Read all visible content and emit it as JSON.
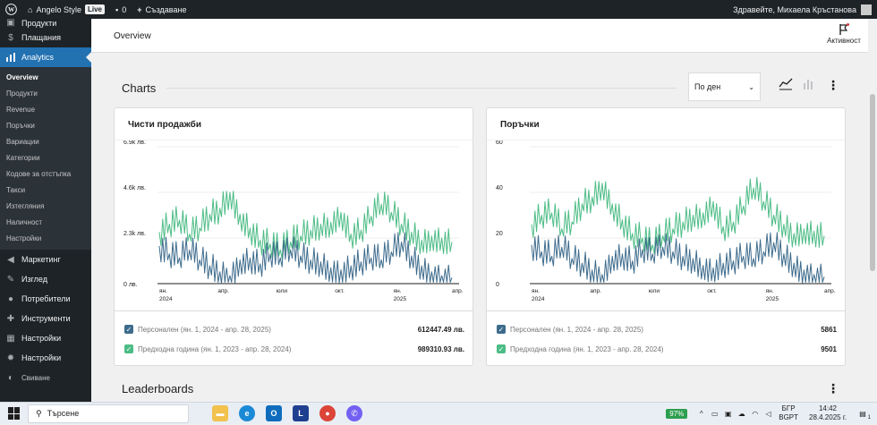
{
  "admin_bar": {
    "site_name": "Angelo Style",
    "live_badge": "Live",
    "comments_count": "0",
    "new_label": "Създаване",
    "greeting": "Здравейте, Михаела Кръстанова"
  },
  "sidebar": {
    "items_top": [
      {
        "label": "Продукти",
        "icon": "box-icon"
      },
      {
        "label": "Плащания",
        "icon": "dollar-icon"
      },
      {
        "label": "Analytics",
        "icon": "bar-chart-icon"
      }
    ],
    "submenu": [
      "Overview",
      "Продукти",
      "Revenue",
      "Поръчки",
      "Вариации",
      "Категории",
      "Кодове за отстъпка",
      "Такси",
      "Изтегляния",
      "Наличност",
      "Настройки"
    ],
    "items_bottom": [
      {
        "label": "Маркетинг",
        "icon": "megaphone-icon"
      },
      {
        "label": "Изглед",
        "icon": "brush-icon"
      },
      {
        "label": "Потребители",
        "icon": "user-icon"
      },
      {
        "label": "Инструменти",
        "icon": "wrench-icon"
      },
      {
        "label": "Настройки",
        "icon": "settings-icon"
      },
      {
        "label": "Настройки",
        "icon": "gear-icon"
      },
      {
        "label": "Свиване",
        "icon": "collapse-icon"
      }
    ]
  },
  "header": {
    "title": "Overview",
    "activity_label": "Активност"
  },
  "charts_section": {
    "title": "Charts",
    "interval_value": "По ден"
  },
  "leaderboards_title": "Leaderboards",
  "colors": {
    "current_series": "#3d6b8c",
    "previous_series": "#4cbc85",
    "accent": "#2271b1"
  },
  "cards": [
    {
      "title": "Чисти продажби",
      "legend": [
        {
          "label": "Персонален (ян. 1, 2024 - апр. 28, 2025)",
          "value": "612447.49 лв."
        },
        {
          "label": "Предходна година (ян. 1, 2023 - апр. 28, 2024)",
          "value": "989310.93 лв."
        }
      ],
      "chart_data": {
        "type": "line",
        "y_tick_labels": [
          "0 лв.",
          "2.3k лв.",
          "4.6k лв.",
          "6.9k лв."
        ],
        "y_ticks": [
          0,
          2300,
          4600,
          6900
        ],
        "x_tick_labels": [
          "ян.",
          "апр.",
          "юли",
          "окт.",
          "ян.",
          "апр."
        ],
        "x_year_labels": [
          {
            "at": 0,
            "label": "2024"
          },
          {
            "at": 4,
            "label": "2025"
          }
        ],
        "ylim": [
          0,
          6900
        ],
        "grid": true,
        "series": [
          {
            "values": [
              1900,
              1500,
              1300,
              1700,
              1200,
              900,
              600,
              400,
              1200,
              1300,
              1000,
              1500,
              1300,
              1700,
              1400,
              1200,
              1100,
              800,
              700,
              900,
              1100,
              1300,
              1200,
              1600,
              2100,
              1400,
              900,
              600,
              400,
              300
            ]
          },
          {
            "values": [
              2600,
              3000,
              3200,
              2500,
              2800,
              3500,
              3800,
              4600,
              3500,
              2800,
              2200,
              2000,
              1700,
              2100,
              2400,
              2700,
              3000,
              3100,
              3600,
              2500,
              2700,
              3400,
              4000,
              3600,
              3000,
              2600,
              2200,
              2400,
              2300,
              2100
            ]
          }
        ]
      }
    },
    {
      "title": "Поръчки",
      "legend": [
        {
          "label": "Персонален (ян. 1, 2024 - апр. 28, 2025)",
          "value": "5861"
        },
        {
          "label": "Предходна година (ян. 1, 2023 - апр. 28, 2024)",
          "value": "9501"
        }
      ],
      "chart_data": {
        "type": "line",
        "y_tick_labels": [
          "0",
          "20",
          "40",
          "60"
        ],
        "y_ticks": [
          0,
          20,
          40,
          60
        ],
        "x_tick_labels": [
          "ян.",
          "апр.",
          "юли",
          "окт.",
          "ян.",
          "апр."
        ],
        "x_year_labels": [
          {
            "at": 0,
            "label": "2024"
          },
          {
            "at": 4,
            "label": "2025"
          }
        ],
        "ylim": [
          0,
          60
        ],
        "grid": true,
        "series": [
          {
            "values": [
              17,
              14,
              12,
              16,
              11,
              9,
              6,
              4,
              12,
              13,
              10,
              15,
              13,
              16,
              14,
              12,
              11,
              8,
              7,
              9,
              10,
              12,
              11,
              14,
              18,
              13,
              9,
              6,
              4,
              3
            ]
          },
          {
            "values": [
              26,
              30,
              31,
              24,
              27,
              35,
              38,
              44,
              35,
              28,
              22,
              20,
              17,
              21,
              24,
              27,
              30,
              31,
              36,
              25,
              27,
              34,
              42,
              36,
              30,
              26,
              22,
              24,
              23,
              21
            ]
          }
        ]
      }
    }
  ],
  "taskbar": {
    "search_placeholder": "Търсене",
    "battery": "97%",
    "lang_top": "БГР",
    "lang_bottom": "BGPT",
    "time": "14:42",
    "date": "28.4.2025 г.",
    "notifications": "1"
  }
}
